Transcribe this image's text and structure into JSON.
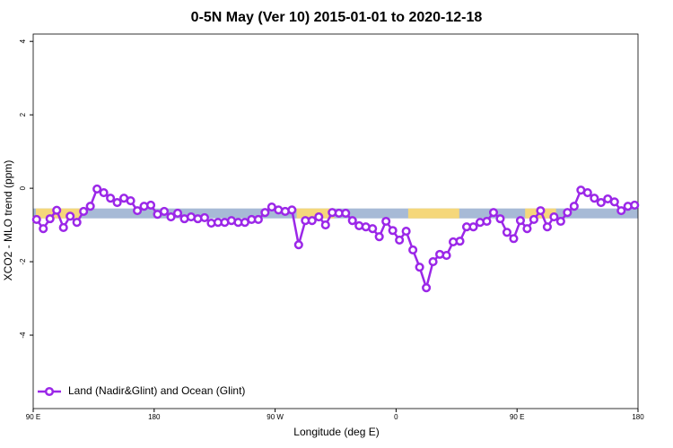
{
  "chart_data": {
    "type": "line",
    "title": "0-5N May (Ver 10)   2015-01-01 to 2020-12-18",
    "xlabel": "Longitude (deg E)",
    "ylabel": "XCO2 - MLO trend (ppm)",
    "xlim": [
      90,
      540
    ],
    "ylim": [
      -6,
      4.2
    ],
    "xticks": [
      {
        "value": 90,
        "label": "90 E"
      },
      180,
      {
        "value": 270,
        "label": "90 W"
      },
      {
        "value": 360,
        "label": "0"
      },
      {
        "value": 450,
        "label": "90 E"
      },
      {
        "value": 540,
        "label": "180"
      }
    ],
    "yticks": [
      4,
      2,
      0,
      -2,
      -4
    ],
    "legend": "bottom-left",
    "band": {
      "range": [
        -0.82,
        -0.55
      ],
      "color": "#a7bad6",
      "segments": [
        {
          "x": [
            92,
            125
          ],
          "color": "#f5d77a"
        },
        {
          "x": [
            286,
            314
          ],
          "color": "#f5d77a"
        },
        {
          "x": [
            369,
            407
          ],
          "color": "#f5d77a"
        },
        {
          "x": [
            456,
            479
          ],
          "color": "#f5d77a"
        }
      ]
    },
    "series": [
      {
        "name": "Land (Nadir&Glint) and Ocean (Glint)",
        "color": "#9b27e8",
        "x": [
          92.5,
          97.5,
          102.5,
          107.5,
          112.5,
          117.5,
          122.5,
          127.5,
          132.5,
          137.5,
          142.5,
          147.5,
          152.5,
          157.5,
          162.5,
          167.5,
          172.5,
          177.5,
          182.5,
          187.5,
          192.5,
          197.5,
          202.5,
          207.5,
          212.5,
          217.5,
          222.5,
          227.5,
          232.5,
          237.5,
          242.5,
          247.5,
          252.5,
          257.5,
          262.5,
          267.5,
          272.5,
          277.5,
          282.5,
          287.5,
          292.5,
          297.5,
          302.5,
          307.5,
          312.5,
          317.5,
          322.5,
          327.5,
          332.5,
          337.5,
          342.5,
          347.5,
          352.5,
          357.5,
          362.5,
          367.5,
          372.5,
          377.5,
          382.5,
          387.5,
          392.5,
          397.5,
          402.5,
          407.5,
          412.5,
          417.5,
          422.5,
          427.5,
          432.5,
          437.5,
          442.5,
          447.5,
          452.5,
          457.5,
          462.5,
          467.5,
          472.5,
          477.5,
          482.5,
          487.5,
          492.5,
          497.5,
          502.5,
          507.5,
          512.5,
          517.5,
          522.5,
          527.5,
          532.5,
          537.5
        ],
        "values": [
          -0.85,
          -1.1,
          -0.83,
          -0.6,
          -1.07,
          -0.76,
          -0.93,
          -0.63,
          -0.49,
          -0.02,
          -0.12,
          -0.27,
          -0.39,
          -0.27,
          -0.34,
          -0.61,
          -0.49,
          -0.46,
          -0.71,
          -0.63,
          -0.78,
          -0.68,
          -0.83,
          -0.78,
          -0.83,
          -0.8,
          -0.95,
          -0.93,
          -0.93,
          -0.88,
          -0.93,
          -0.93,
          -0.85,
          -0.85,
          -0.66,
          -0.51,
          -0.59,
          -0.63,
          -0.59,
          -1.54,
          -0.88,
          -0.88,
          -0.78,
          -1.0,
          -0.66,
          -0.68,
          -0.68,
          -0.88,
          -1.02,
          -1.05,
          -1.1,
          -1.32,
          -0.9,
          -1.15,
          -1.41,
          -1.17,
          -1.68,
          -2.15,
          -2.71,
          -2.0,
          -1.8,
          -1.83,
          -1.46,
          -1.44,
          -1.05,
          -1.05,
          -0.93,
          -0.9,
          -0.66,
          -0.83,
          -1.2,
          -1.37,
          -0.88,
          -1.1,
          -0.85,
          -0.61,
          -1.05,
          -0.78,
          -0.9,
          -0.66,
          -0.49,
          -0.05,
          -0.12,
          -0.27,
          -0.39,
          -0.29,
          -0.37,
          -0.61,
          -0.49,
          -0.46
        ]
      }
    ]
  }
}
